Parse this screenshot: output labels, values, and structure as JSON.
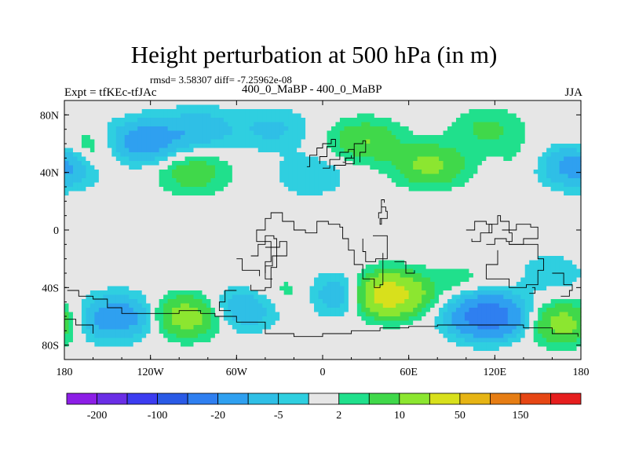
{
  "header": {
    "title": "Height perturbation at 500 hPa (in m)",
    "stats": "rmsd= 3.58307 diff= -7.25962e-08",
    "left_label": "Expt = tfKEc-tfJAc",
    "center_label": "400_0_MaBP - 400_0_MaBP",
    "right_label": "JJA"
  },
  "chart_data": {
    "type": "heatmap",
    "title": "Height perturbation at 500 hPa (in m)",
    "projection": "cylindrical-equidistant",
    "xlim": [
      -180,
      180
    ],
    "ylim": [
      -90,
      90
    ],
    "x_ticks": [
      {
        "value": -180,
        "label": "180"
      },
      {
        "value": -120,
        "label": "120W"
      },
      {
        "value": -60,
        "label": "60W"
      },
      {
        "value": 0,
        "label": "0"
      },
      {
        "value": 60,
        "label": "60E"
      },
      {
        "value": 120,
        "label": "120E"
      },
      {
        "value": 180,
        "label": "180"
      }
    ],
    "y_ticks": [
      {
        "value": 80,
        "label": "80N"
      },
      {
        "value": 40,
        "label": "40N"
      },
      {
        "value": 0,
        "label": "0"
      },
      {
        "value": -40,
        "label": "40S"
      },
      {
        "value": -80,
        "label": "80S"
      }
    ],
    "levels": [
      -200,
      -150,
      -100,
      -50,
      -20,
      -10,
      -5,
      -2,
      2,
      5,
      10,
      20,
      50,
      100,
      150,
      200
    ],
    "colors": [
      "#8c1ee6",
      "#6a2ee6",
      "#3c3cf0",
      "#2a5ae6",
      "#2f7ff0",
      "#2fa0f0",
      "#2fbfe6",
      "#2fcfe0",
      "#e6e6e6",
      "#20e08c",
      "#40d84a",
      "#8ce630",
      "#d8e01c",
      "#e6b414",
      "#e67d14",
      "#e64614",
      "#e61e1e"
    ],
    "colorbar_labels": [
      {
        "level": -200,
        "label": "-200"
      },
      {
        "level": -100,
        "label": "-100"
      },
      {
        "level": -20,
        "label": "-20"
      },
      {
        "level": -5,
        "label": "-5"
      },
      {
        "level": 2,
        "label": "2"
      },
      {
        "level": 10,
        "label": "10"
      },
      {
        "level": 50,
        "label": "50"
      },
      {
        "level": 150,
        "label": "150"
      }
    ],
    "anomaly_centers": [
      {
        "lon": -178,
        "lat": 45,
        "value": -8
      },
      {
        "lon": -160,
        "lat": 55,
        "value": 8
      },
      {
        "lon": -130,
        "lat": 60,
        "value": -12
      },
      {
        "lon": -115,
        "lat": 65,
        "value": -5
      },
      {
        "lon": -90,
        "lat": 40,
        "value": 8
      },
      {
        "lon": -85,
        "lat": 70,
        "value": -8
      },
      {
        "lon": -35,
        "lat": 70,
        "value": -6
      },
      {
        "lon": -8,
        "lat": 38,
        "value": -5
      },
      {
        "lon": 30,
        "lat": 62,
        "value": 10
      },
      {
        "lon": 75,
        "lat": 45,
        "value": 12
      },
      {
        "lon": 115,
        "lat": 70,
        "value": 6
      },
      {
        "lon": 145,
        "lat": 48,
        "value": 3
      },
      {
        "lon": 170,
        "lat": 45,
        "value": -8
      },
      {
        "lon": -165,
        "lat": -65,
        "value": -6
      },
      {
        "lon": -140,
        "lat": -60,
        "value": -14
      },
      {
        "lon": -95,
        "lat": -60,
        "value": 15
      },
      {
        "lon": -55,
        "lat": -55,
        "value": -10
      },
      {
        "lon": -25,
        "lat": -45,
        "value": 4
      },
      {
        "lon": 15,
        "lat": -45,
        "value": -12
      },
      {
        "lon": 45,
        "lat": -45,
        "value": 30
      },
      {
        "lon": 95,
        "lat": -35,
        "value": 3
      },
      {
        "lon": 115,
        "lat": -60,
        "value": -30
      },
      {
        "lon": 170,
        "lat": -65,
        "value": 15
      },
      {
        "lon": 160,
        "lat": -30,
        "value": -4
      }
    ],
    "coastlines": [
      [
        [
          -11,
          44
        ],
        [
          -9,
          52
        ],
        [
          -4,
          57
        ],
        [
          0,
          60
        ],
        [
          6,
          63
        ],
        [
          9,
          58
        ],
        [
          3,
          51
        ],
        [
          -2,
          46
        ]
      ],
      [
        [
          0,
          43
        ],
        [
          5,
          49
        ],
        [
          12,
          54
        ],
        [
          18,
          56
        ],
        [
          22,
          50
        ],
        [
          16,
          45
        ],
        [
          8,
          41
        ]
      ],
      [
        [
          16,
          46
        ],
        [
          22,
          60
        ],
        [
          28,
          62
        ],
        [
          30,
          54
        ],
        [
          26,
          47
        ]
      ],
      [
        [
          14,
          47
        ],
        [
          16,
          50
        ],
        [
          20,
          52
        ]
      ],
      [
        [
          39,
          8
        ],
        [
          39,
          12
        ],
        [
          41,
          16
        ],
        [
          44,
          13
        ],
        [
          45,
          8
        ],
        [
          40,
          4
        ],
        [
          41,
          8
        ]
      ],
      [
        [
          41,
          16
        ],
        [
          41,
          21
        ],
        [
          43,
          19
        ]
      ],
      [
        [
          35,
          -4
        ],
        [
          43,
          -4
        ],
        [
          45,
          -20
        ],
        [
          37,
          -22
        ],
        [
          30,
          -15
        ],
        [
          28,
          -6
        ]
      ],
      [
        [
          -35,
          -34
        ],
        [
          -40,
          -22
        ],
        [
          -36,
          -8
        ],
        [
          -46,
          0
        ],
        [
          -40,
          8
        ],
        [
          -36,
          12
        ],
        [
          -28,
          6
        ],
        [
          -20,
          0
        ],
        [
          -12,
          -2
        ],
        [
          -4,
          6
        ],
        [
          4,
          4
        ],
        [
          12,
          2
        ],
        [
          14,
          -6
        ],
        [
          18,
          -14
        ],
        [
          22,
          -24
        ],
        [
          28,
          -34
        ],
        [
          36,
          -40
        ],
        [
          40,
          -38
        ],
        [
          42,
          -30
        ],
        [
          42,
          -16
        ]
      ],
      [
        [
          -40,
          -12
        ],
        [
          -30,
          -8
        ],
        [
          -25,
          -18
        ],
        [
          -35,
          -25
        ],
        [
          -40,
          -30
        ]
      ],
      [
        [
          -50,
          -18
        ],
        [
          -45,
          -10
        ],
        [
          -40,
          -4
        ],
        [
          -34,
          -6
        ],
        [
          -32,
          -26
        ],
        [
          -36,
          -40
        ],
        [
          -40,
          -42
        ],
        [
          -50,
          -38
        ]
      ],
      [
        [
          -60,
          -20
        ],
        [
          -56,
          -28
        ],
        [
          -50,
          -28
        ],
        [
          -44,
          -32
        ]
      ],
      [
        [
          -60,
          -42
        ],
        [
          -68,
          -50
        ],
        [
          -72,
          -56
        ],
        [
          -64,
          -56
        ]
      ],
      [
        [
          50,
          -22
        ],
        [
          58,
          -30
        ],
        [
          64,
          -28
        ]
      ],
      [
        [
          100,
          0
        ],
        [
          106,
          6
        ],
        [
          114,
          4
        ],
        [
          118,
          -2
        ],
        [
          110,
          -8
        ],
        [
          104,
          -6
        ]
      ],
      [
        [
          114,
          -10
        ],
        [
          120,
          -6
        ],
        [
          128,
          -8
        ],
        [
          132,
          -2
        ],
        [
          130,
          6
        ],
        [
          124,
          10
        ],
        [
          122,
          4
        ],
        [
          116,
          -2
        ]
      ],
      [
        [
          125,
          0
        ],
        [
          135,
          4
        ],
        [
          145,
          2
        ],
        [
          150,
          -6
        ],
        [
          140,
          -10
        ],
        [
          130,
          -8
        ]
      ],
      [
        [
          130,
          -10
        ],
        [
          142,
          -10
        ],
        [
          150,
          -20
        ],
        [
          154,
          -28
        ],
        [
          150,
          -38
        ],
        [
          142,
          -40
        ],
        [
          130,
          -34
        ],
        [
          118,
          -34
        ],
        [
          114,
          -24
        ],
        [
          122,
          -14
        ]
      ],
      [
        [
          146,
          -40
        ],
        [
          148,
          -44
        ],
        [
          144,
          -44
        ]
      ],
      [
        [
          160,
          -30
        ],
        [
          168,
          -38
        ],
        [
          174,
          -42
        ],
        [
          172,
          -46
        ],
        [
          166,
          -46
        ]
      ],
      [
        [
          -178,
          -42
        ],
        [
          -170,
          -46
        ],
        [
          -160,
          -48
        ],
        [
          -150,
          -54
        ],
        [
          -140,
          -58
        ],
        [
          -120,
          -58
        ],
        [
          -100,
          -56
        ],
        [
          -85,
          -58
        ],
        [
          -75,
          -60
        ],
        [
          -60,
          -64
        ],
        [
          -40,
          -72
        ],
        [
          -20,
          -74
        ],
        [
          0,
          -72
        ],
        [
          20,
          -70
        ],
        [
          40,
          -68
        ],
        [
          60,
          -67
        ],
        [
          80,
          -66
        ],
        [
          100,
          -66
        ],
        [
          120,
          -66
        ],
        [
          140,
          -68
        ],
        [
          160,
          -72
        ],
        [
          178,
          -74
        ]
      ],
      [
        [
          -180,
          -62
        ],
        [
          -172,
          -66
        ],
        [
          -160,
          -72
        ]
      ]
    ]
  }
}
